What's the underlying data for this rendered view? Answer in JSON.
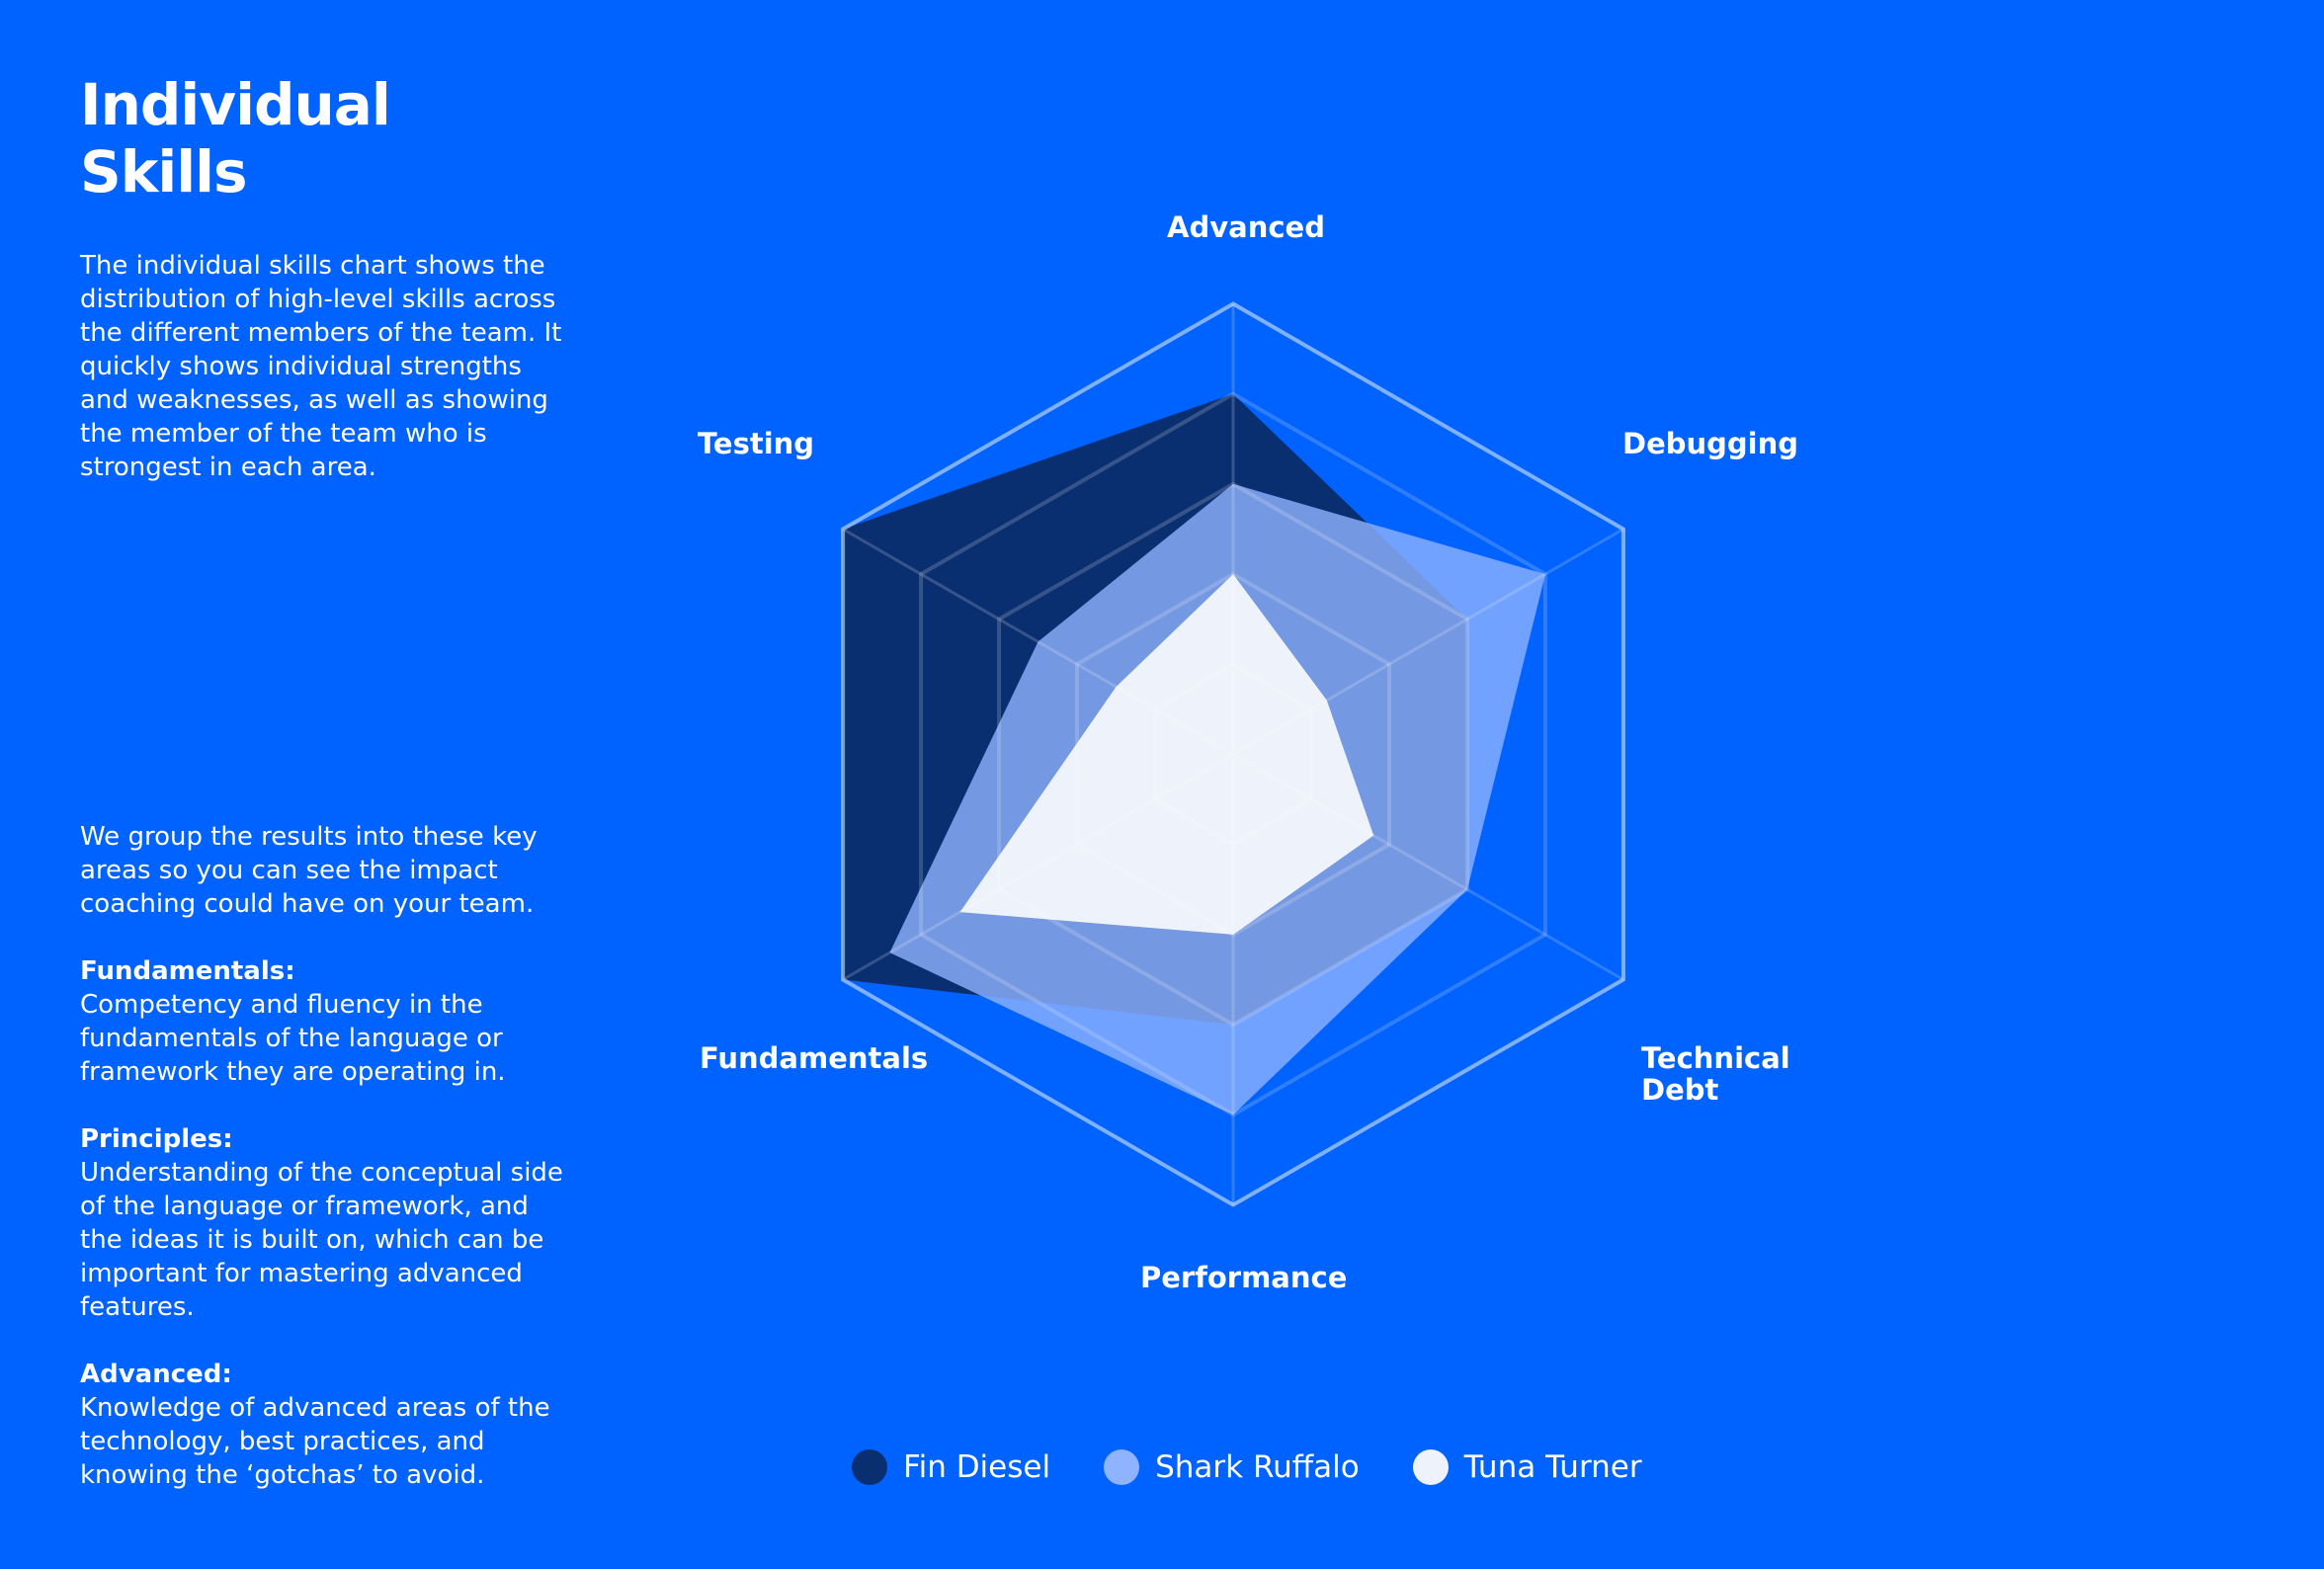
{
  "panel": {
    "title": "Individual Skills",
    "intro": "The individual skills chart shows the distribution of high-level skills across the different members of the team. It quickly shows individual strengths and weaknesses, as well as showing the member of the team who is strongest in each area.",
    "groups_intro": "We group the results into these key areas so you can see the impact coaching could have on your team.",
    "sections": [
      {
        "heading": "Fundamentals:",
        "text": "Competency and fluency in the fundamentals of the language or framework they are operating in."
      },
      {
        "heading": "Principles:",
        "text": "Understanding of the conceptual side of the language or framework, and the ideas it is built on, which can be important for mastering advanced features."
      },
      {
        "heading": "Advanced:",
        "text": "Knowledge of advanced areas of the technology, best practices, and knowing the ‘gotchas’ to avoid."
      }
    ]
  },
  "chart_data": {
    "type": "radar",
    "categories": [
      "Advanced",
      "Debugging",
      "Technical Debt",
      "Performance",
      "Fundamentals",
      "Testing"
    ],
    "rlim": [
      0,
      5
    ],
    "rticks": [
      1,
      2,
      3,
      4,
      5
    ],
    "grid": true,
    "series": [
      {
        "name": "Fin Diesel",
        "color": "#0a2f70",
        "values": [
          4,
          3,
          3,
          3,
          5,
          5
        ]
      },
      {
        "name": "Shark Ruffalo",
        "color": "#8fb3ff",
        "values": [
          3,
          4,
          3,
          4,
          4.4,
          2.5
        ]
      },
      {
        "name": "Tuna Turner",
        "color": "#eef2fb",
        "values": [
          2,
          1.2,
          1.8,
          2,
          3.5,
          1.5
        ]
      }
    ]
  }
}
